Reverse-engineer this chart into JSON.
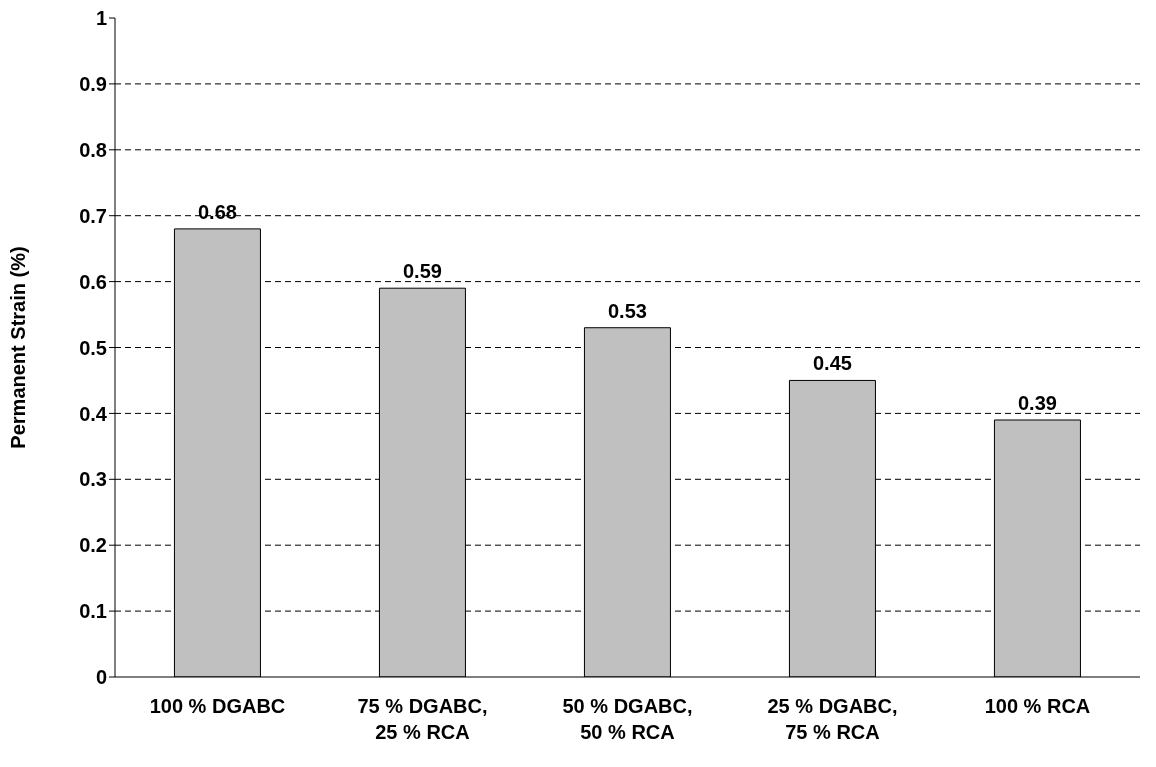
{
  "chart_data": {
    "type": "bar",
    "ylabel": "Permanent Strain (%)",
    "categories": [
      "100 % DGABC",
      "75 % DGABC, 25 % RCA",
      "50 % DGABC, 50 % RCA",
      "25 % DGABC, 75 % RCA",
      "100 % RCA"
    ],
    "values": [
      0.68,
      0.59,
      0.53,
      0.45,
      0.39
    ],
    "color": "#c0c0c0",
    "ylim": [
      0,
      1
    ],
    "yticks": [
      0,
      0.1,
      0.2,
      0.3,
      0.4,
      0.5,
      0.6,
      0.7,
      0.8,
      0.9,
      1
    ],
    "grid": "y",
    "data_labels": true
  }
}
